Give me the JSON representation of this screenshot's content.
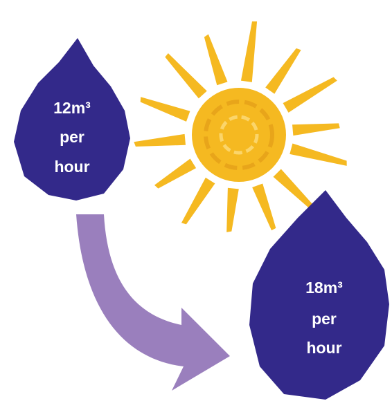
{
  "drops": [
    {
      "lines": [
        "12m³",
        "per",
        "hour"
      ]
    },
    {
      "lines": [
        "18m³",
        "per",
        "hour"
      ]
    }
  ]
}
